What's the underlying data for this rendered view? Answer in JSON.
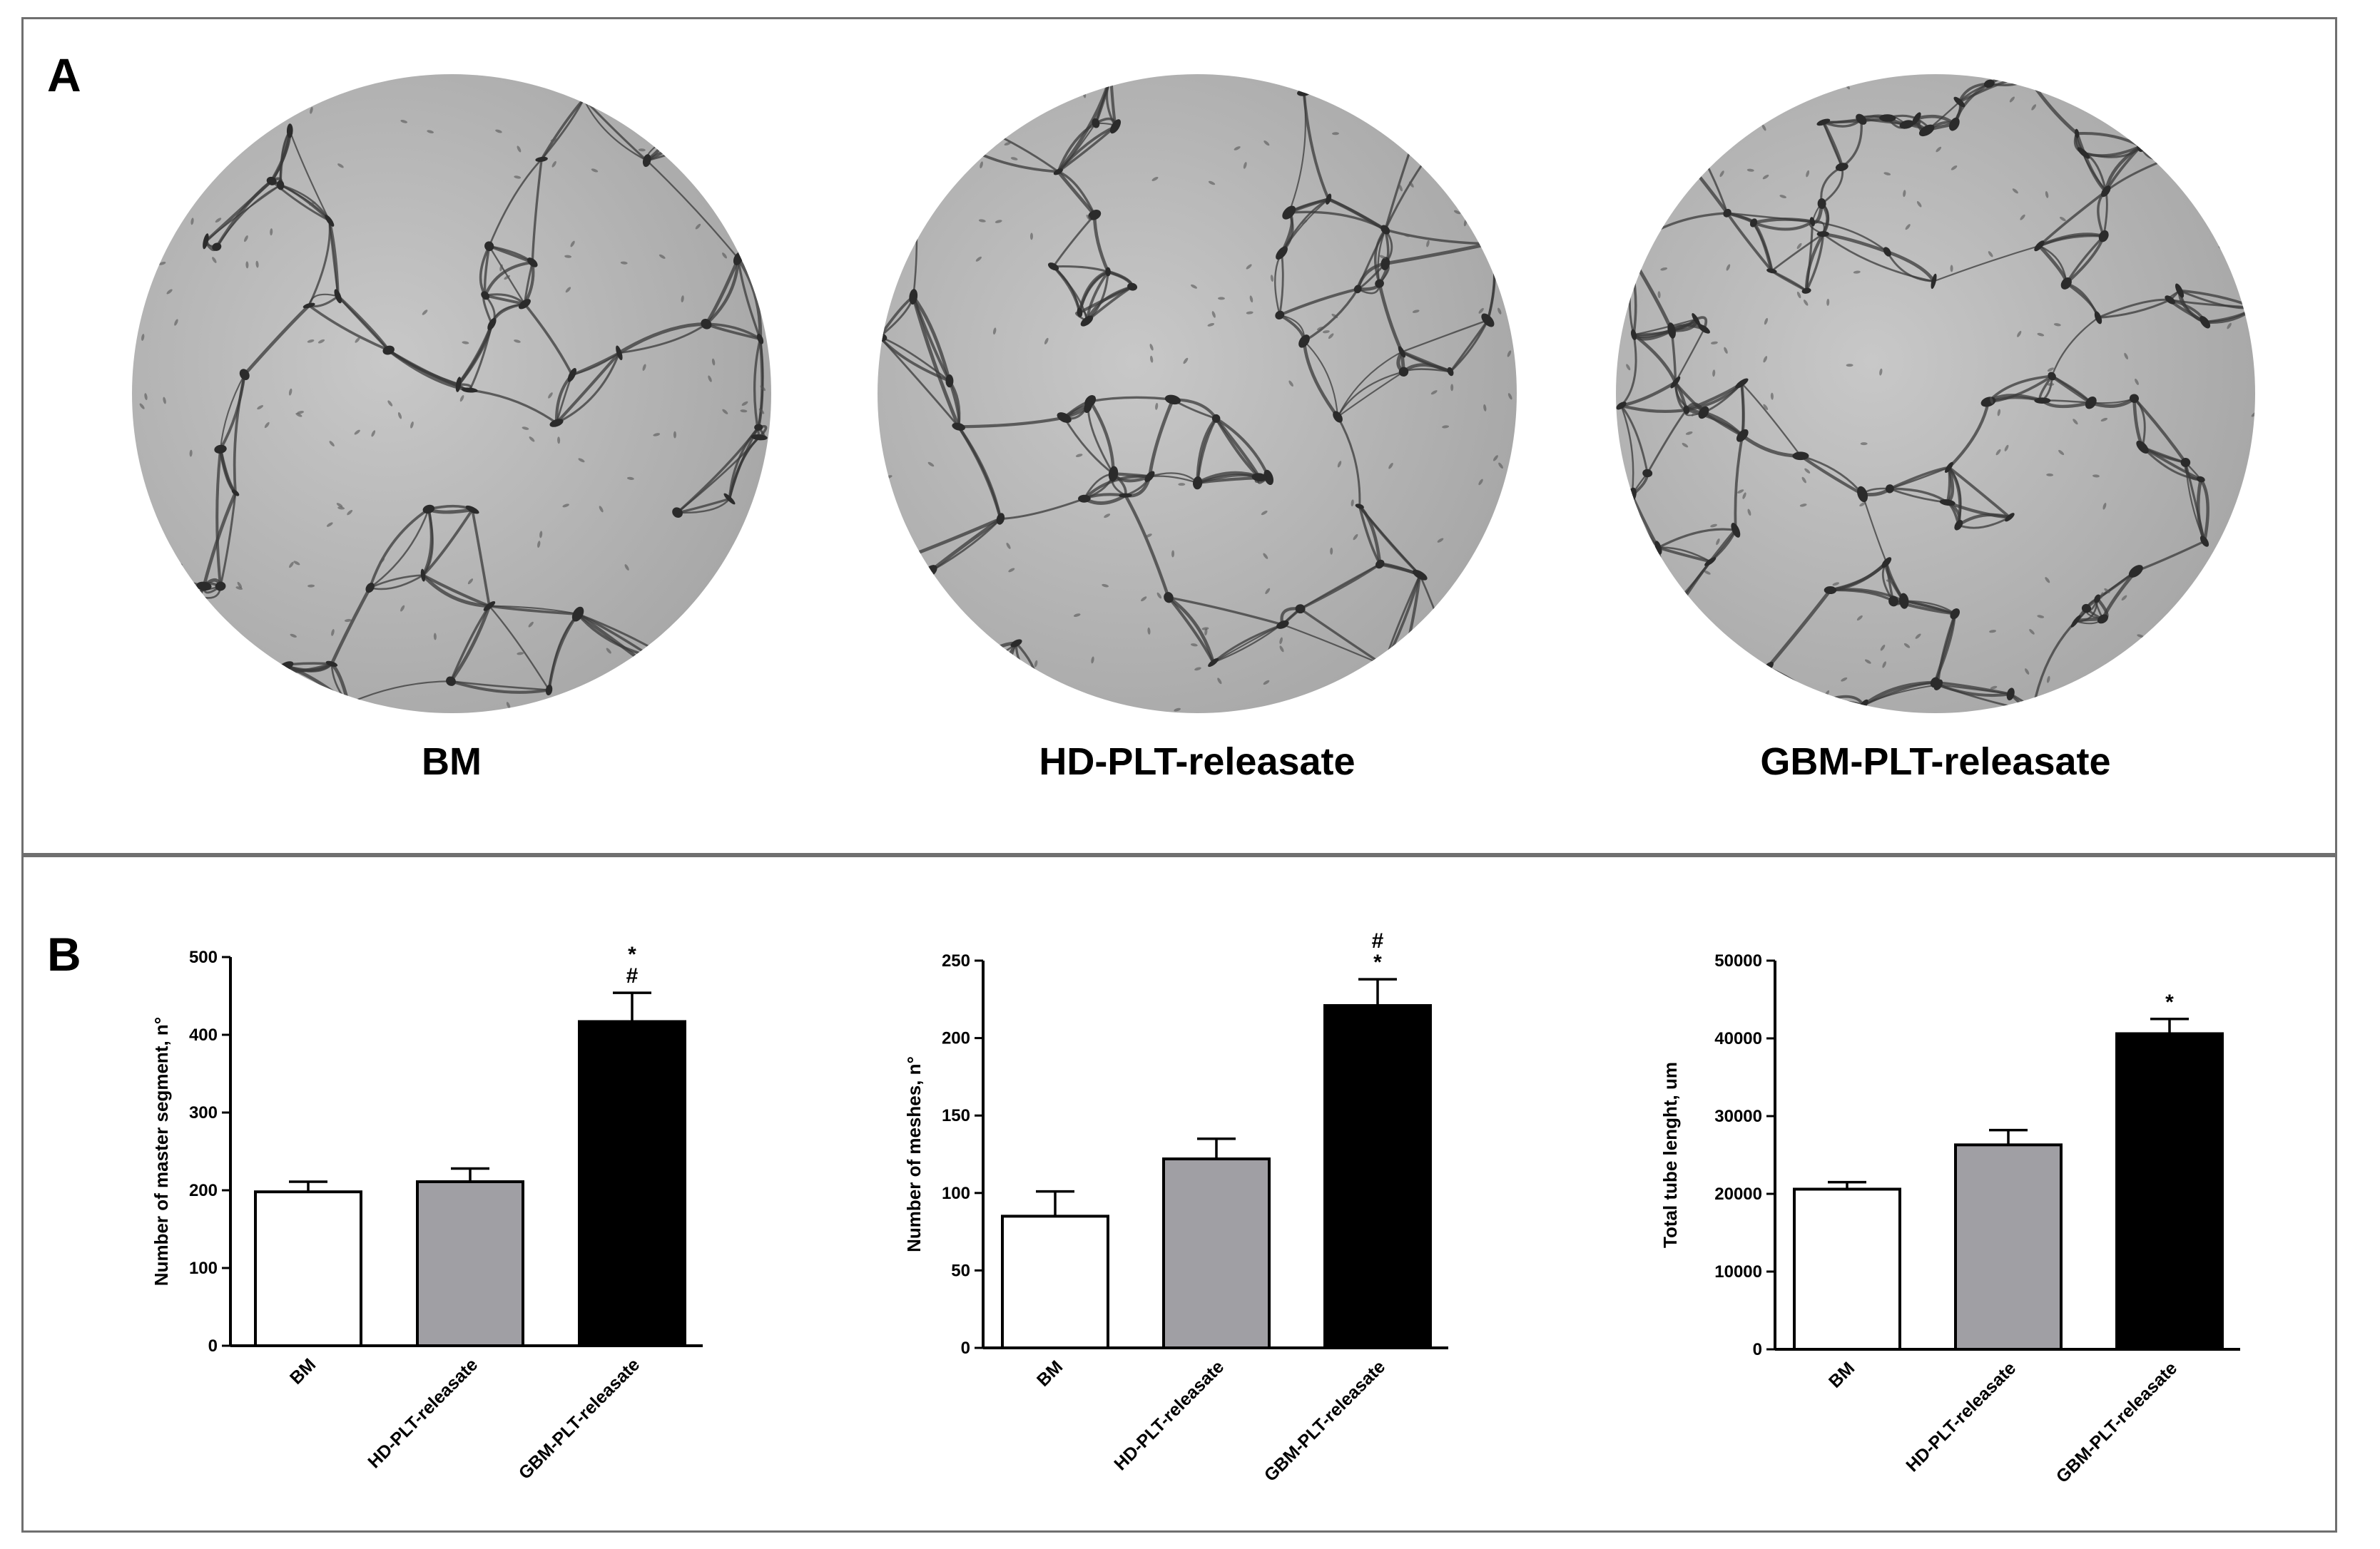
{
  "figure": {
    "panel_a_letter": "A",
    "panel_b_letter": "B"
  },
  "micrographs": [
    {
      "label": "BM",
      "icon": "tube-formation-micrograph"
    },
    {
      "label": "HD-PLT-releasate",
      "icon": "tube-formation-micrograph"
    },
    {
      "label": "GBM-PLT-releasate",
      "icon": "tube-formation-micrograph"
    }
  ],
  "colors": {
    "bm_bar": "#ffffff",
    "hd_bar": "#a09fa4",
    "gbm_bar": "#000000",
    "panel_border": "#6f6f6f",
    "micrograph_bg": "#b9b9b9"
  },
  "chart_data": [
    {
      "type": "bar",
      "title": "",
      "xlabel": "",
      "ylabel": "Number of master segment, n°",
      "ylim": [
        0,
        500
      ],
      "yticks": [
        0,
        100,
        200,
        300,
        400,
        500
      ],
      "tick_labels": [
        "0",
        "100",
        "200",
        "300",
        "400",
        "500"
      ],
      "categories": [
        "BM",
        "HD-PLT-releasate",
        "GBM-PLT-releasate"
      ],
      "values": [
        198,
        211,
        417
      ],
      "errors": [
        13,
        17,
        37
      ],
      "annotations": [
        [],
        [],
        [
          "*",
          "#"
        ]
      ],
      "grid": false,
      "legend": "none"
    },
    {
      "type": "bar",
      "title": "",
      "xlabel": "",
      "ylabel": "Number of meshes, n°",
      "ylim": [
        0,
        250
      ],
      "yticks": [
        0,
        50,
        100,
        150,
        200,
        250
      ],
      "tick_labels": [
        "0",
        "50",
        "100",
        "150",
        "200",
        "250"
      ],
      "categories": [
        "BM",
        "HD-PLT-releasate",
        "GBM-PLT-releasate"
      ],
      "values": [
        85,
        122,
        221
      ],
      "errors": [
        16,
        13,
        17
      ],
      "annotations": [
        [],
        [],
        [
          "#",
          "*"
        ]
      ],
      "grid": false,
      "legend": "none"
    },
    {
      "type": "bar",
      "title": "",
      "xlabel": "",
      "ylabel": "Total tube lenght, um",
      "ylim": [
        0,
        50000
      ],
      "yticks": [
        0,
        10000,
        20000,
        30000,
        40000,
        50000
      ],
      "tick_labels": [
        "0",
        "10000",
        "20000",
        "30000",
        "40000",
        "50000"
      ],
      "categories": [
        "BM",
        "HD-PLT-releasate",
        "GBM-PLT-releasate"
      ],
      "values": [
        20600,
        26300,
        40600
      ],
      "errors": [
        900,
        1900,
        1900
      ],
      "annotations": [
        [],
        [],
        [
          "*"
        ]
      ],
      "grid": false,
      "legend": "none"
    }
  ]
}
